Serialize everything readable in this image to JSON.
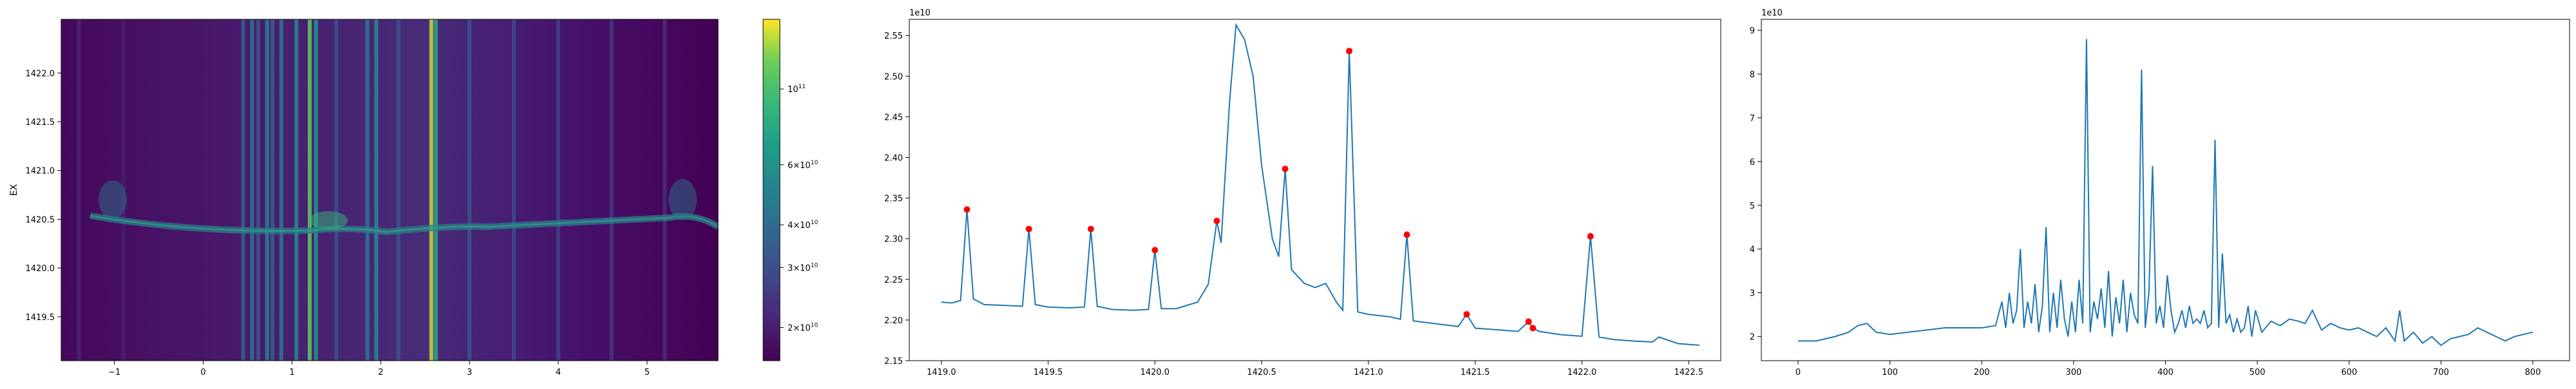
{
  "chart_data": [
    {
      "type": "heatmap",
      "ylabel": "EX",
      "xlim": [
        -1.6,
        5.8
      ],
      "ylim": [
        1419.05,
        1422.55
      ],
      "xticks": [
        -1,
        0,
        1,
        2,
        3,
        4,
        5
      ],
      "xtick_labels": [
        "−1",
        "0",
        "1",
        "2",
        "3",
        "4",
        "5"
      ],
      "yticks": [
        1419.5,
        1420.0,
        1420.5,
        1421.0,
        1421.5,
        1422.0
      ],
      "ytick_labels": [
        "1419.5",
        "1420.0",
        "1420.5",
        "1421.0",
        "1421.5",
        "1422.0"
      ],
      "colormap": "viridis",
      "colorbar": {
        "scale": "log",
        "range": [
          16000000000.0,
          160000000000.0
        ],
        "ticks": [
          {
            "value": 20000000000.0,
            "mantissa": "2",
            "exp": "10"
          },
          {
            "value": 30000000000.0,
            "mantissa": "3",
            "exp": "10"
          },
          {
            "value": 40000000000.0,
            "mantissa": "4",
            "exp": "10"
          },
          {
            "value": 60000000000.0,
            "mantissa": "6",
            "exp": "10"
          },
          {
            "value": 100000000000.0,
            "mantissa": "",
            "exp": "11"
          }
        ]
      },
      "vertical_bands": [
        {
          "x": -1.4,
          "level": 0.12
        },
        {
          "x": -0.9,
          "level": 0.1
        },
        {
          "x": 0.45,
          "level": 0.35
        },
        {
          "x": 0.55,
          "level": 0.45
        },
        {
          "x": 0.62,
          "level": 0.3
        },
        {
          "x": 0.72,
          "level": 0.5
        },
        {
          "x": 0.78,
          "level": 0.35
        },
        {
          "x": 0.88,
          "level": 0.45
        },
        {
          "x": 1.05,
          "level": 0.55
        },
        {
          "x": 1.2,
          "level": 0.85
        },
        {
          "x": 1.27,
          "level": 0.6
        },
        {
          "x": 1.5,
          "level": 0.3
        },
        {
          "x": 1.85,
          "level": 0.45
        },
        {
          "x": 1.95,
          "level": 0.55
        },
        {
          "x": 2.2,
          "level": 0.3
        },
        {
          "x": 2.57,
          "level": 0.95
        },
        {
          "x": 2.62,
          "level": 0.7
        },
        {
          "x": 3.0,
          "level": 0.3
        },
        {
          "x": 3.5,
          "level": 0.25
        },
        {
          "x": 4.0,
          "level": 0.22
        },
        {
          "x": 4.6,
          "level": 0.18
        },
        {
          "x": 5.2,
          "level": 0.15
        }
      ]
    },
    {
      "type": "line",
      "exponent": "1e10",
      "xlim": [
        1418.85,
        1422.65
      ],
      "ylim": [
        2.15,
        2.57
      ],
      "xticks": [
        1419.0,
        1419.5,
        1420.0,
        1420.5,
        1421.0,
        1421.5,
        1422.0,
        1422.5
      ],
      "xtick_labels": [
        "1419.0",
        "1419.5",
        "1420.0",
        "1420.5",
        "1421.0",
        "1421.5",
        "1422.0",
        "1422.5"
      ],
      "yticks": [
        2.15,
        2.2,
        2.25,
        2.3,
        2.35,
        2.4,
        2.45,
        2.5,
        2.55
      ],
      "ytick_labels": [
        "2.15",
        "2.20",
        "2.25",
        "2.30",
        "2.35",
        "2.40",
        "2.45",
        "2.50",
        "2.55"
      ],
      "x": [
        1419.0,
        1419.05,
        1419.09,
        1419.12,
        1419.15,
        1419.2,
        1419.3,
        1419.38,
        1419.41,
        1419.44,
        1419.5,
        1419.6,
        1419.67,
        1419.7,
        1419.73,
        1419.8,
        1419.9,
        1419.97,
        1420.0,
        1420.03,
        1420.1,
        1420.2,
        1420.25,
        1420.29,
        1420.31,
        1420.35,
        1420.38,
        1420.42,
        1420.46,
        1420.5,
        1420.55,
        1420.58,
        1420.61,
        1420.64,
        1420.7,
        1420.75,
        1420.8,
        1420.85,
        1420.88,
        1420.91,
        1420.95,
        1421.0,
        1421.1,
        1421.15,
        1421.18,
        1421.21,
        1421.3,
        1421.42,
        1421.46,
        1421.5,
        1421.6,
        1421.7,
        1421.75,
        1421.77,
        1421.8,
        1421.9,
        1422.0,
        1422.04,
        1422.08,
        1422.15,
        1422.25,
        1422.33,
        1422.36,
        1422.45,
        1422.55
      ],
      "y": [
        2.222,
        2.221,
        2.224,
        2.336,
        2.226,
        2.219,
        2.218,
        2.217,
        2.312,
        2.219,
        2.216,
        2.215,
        2.216,
        2.312,
        2.217,
        2.213,
        2.212,
        2.213,
        2.286,
        2.214,
        2.214,
        2.222,
        2.244,
        2.322,
        2.295,
        2.47,
        2.563,
        2.545,
        2.5,
        2.39,
        2.3,
        2.278,
        2.386,
        2.262,
        2.245,
        2.24,
        2.245,
        2.222,
        2.212,
        2.531,
        2.21,
        2.207,
        2.204,
        2.201,
        2.305,
        2.199,
        2.196,
        2.192,
        2.207,
        2.19,
        2.188,
        2.186,
        2.198,
        2.19,
        2.186,
        2.182,
        2.18,
        2.303,
        2.179,
        2.176,
        2.174,
        2.173,
        2.179,
        2.171,
        2.169
      ],
      "peaks": {
        "x": [
          1419.12,
          1419.41,
          1419.7,
          1420.0,
          1420.29,
          1420.61,
          1420.91,
          1421.18,
          1421.46,
          1421.75,
          1421.77,
          1422.04
        ],
        "y": [
          2.336,
          2.312,
          2.312,
          2.286,
          2.322,
          2.386,
          2.531,
          2.305,
          2.207,
          2.198,
          2.19,
          2.303
        ]
      },
      "line_color": "#1f77b4",
      "marker_color": "#ff0000"
    },
    {
      "type": "line",
      "exponent": "1e10",
      "xlim": [
        -40,
        840
      ],
      "ylim": [
        1.45,
        9.25
      ],
      "xticks": [
        0,
        100,
        200,
        300,
        400,
        500,
        600,
        700,
        800
      ],
      "xtick_labels": [
        "0",
        "100",
        "200",
        "300",
        "400",
        "500",
        "600",
        "700",
        "800"
      ],
      "yticks": [
        2,
        3,
        4,
        5,
        6,
        7,
        8,
        9
      ],
      "ytick_labels": [
        "2",
        "3",
        "4",
        "5",
        "6",
        "7",
        "8",
        "9"
      ],
      "x": [
        0,
        20,
        40,
        55,
        65,
        75,
        85,
        100,
        120,
        140,
        160,
        180,
        200,
        215,
        222,
        226,
        230,
        234,
        238,
        242,
        246,
        250,
        254,
        258,
        262,
        266,
        270,
        274,
        278,
        282,
        286,
        290,
        294,
        298,
        302,
        306,
        310,
        314,
        318,
        322,
        326,
        330,
        334,
        338,
        342,
        346,
        350,
        354,
        358,
        362,
        366,
        370,
        374,
        378,
        382,
        386,
        390,
        394,
        398,
        402,
        406,
        410,
        414,
        418,
        422,
        426,
        430,
        434,
        438,
        442,
        446,
        450,
        454,
        458,
        462,
        466,
        470,
        474,
        478,
        482,
        486,
        490,
        494,
        498,
        505,
        515,
        525,
        535,
        545,
        552,
        560,
        570,
        580,
        590,
        600,
        610,
        620,
        630,
        640,
        650,
        655,
        660,
        670,
        680,
        690,
        700,
        710,
        720,
        730,
        740,
        750,
        760,
        770,
        780,
        790,
        800
      ],
      "y": [
        1.9,
        1.9,
        2.0,
        2.1,
        2.25,
        2.3,
        2.1,
        2.05,
        2.1,
        2.15,
        2.2,
        2.2,
        2.2,
        2.25,
        2.8,
        2.2,
        3.0,
        2.3,
        2.6,
        4.0,
        2.2,
        2.8,
        2.3,
        3.2,
        2.1,
        2.7,
        4.5,
        2.1,
        3.0,
        2.2,
        3.3,
        2.4,
        2.0,
        2.8,
        2.1,
        3.3,
        2.3,
        8.8,
        2.1,
        2.8,
        2.4,
        3.1,
        2.2,
        3.5,
        2.0,
        2.9,
        2.3,
        3.3,
        2.1,
        3.0,
        2.5,
        2.3,
        8.1,
        2.2,
        3.0,
        5.9,
        2.3,
        2.7,
        2.2,
        3.4,
        2.6,
        2.1,
        2.3,
        2.6,
        2.2,
        2.7,
        2.3,
        2.4,
        2.3,
        2.6,
        2.2,
        2.3,
        6.5,
        2.2,
        3.9,
        2.3,
        2.5,
        2.1,
        2.4,
        2.1,
        2.2,
        2.7,
        2.0,
        2.6,
        2.1,
        2.35,
        2.25,
        2.4,
        2.35,
        2.3,
        2.6,
        2.15,
        2.3,
        2.2,
        2.15,
        2.2,
        2.1,
        2.0,
        2.2,
        1.9,
        2.6,
        1.9,
        2.1,
        1.85,
        2.0,
        1.8,
        1.95,
        2.0,
        2.05,
        2.2,
        2.1,
        2.0,
        1.9,
        2.0,
        2.05,
        2.1
      ],
      "line_color": "#1f77b4"
    }
  ]
}
